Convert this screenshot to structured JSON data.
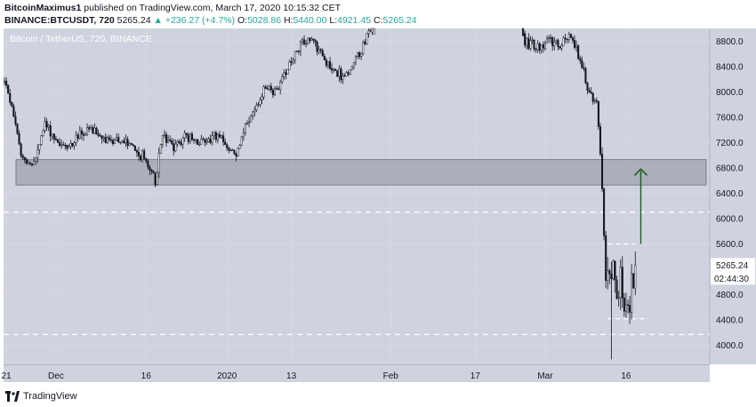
{
  "header": {
    "author": "BitcoinMaximus1",
    "published_text": "published on TradingView.com, March 17, 2020 10:15:32 CET",
    "symbol": "BINANCE:BTCUSDT, 720",
    "last": "5265.24",
    "change": "+236.27 (+4.7%)",
    "ohlc": [
      {
        "label": "O:",
        "value": "5028.86"
      },
      {
        "label": "H:",
        "value": "5440.00"
      },
      {
        "label": "L:",
        "value": "4921.45"
      },
      {
        "label": "C:",
        "value": "5265.24"
      }
    ]
  },
  "footer": {
    "brand": "TradingView"
  },
  "colors": {
    "plot_bg": "#cfd3df",
    "candle": "#131722",
    "zone_fill": "#8e919b",
    "dashed": "#ffffff",
    "arrow": "#1b5e20",
    "price_label_bg": "#ffffff"
  },
  "chart_data": {
    "type": "candlestick",
    "title": "Bitcoin / TetherUS, 720, BINANCE",
    "ylim": [
      3700,
      9000
    ],
    "y_ticks": [
      4000,
      4400,
      4800,
      5200,
      5600,
      6000,
      6400,
      6800,
      7200,
      7600,
      8000,
      8400,
      8800
    ],
    "x_ticks": [
      "21",
      "Dec",
      "16",
      "2020",
      "13",
      "Feb",
      "17",
      "Mar",
      "16"
    ],
    "x_tick_index": [
      1,
      28,
      77,
      121,
      156,
      210,
      256,
      294,
      338
    ],
    "n_bars": 384,
    "last_price_label": "5265.24",
    "countdown_label": "02:44:30",
    "support_zone": [
      6530,
      6930
    ],
    "dashed_levels": [
      6100,
      4170
    ],
    "short_dashed_levels": [
      {
        "value": 5600,
        "from_index": 328,
        "to_index": 343
      },
      {
        "value": 4420,
        "from_index": 328,
        "to_index": 350
      }
    ],
    "target_arrow": {
      "index": 346,
      "from": 5600,
      "to": 6780
    },
    "path_anchors": [
      [
        0,
        8150
      ],
      [
        4,
        7800
      ],
      [
        8,
        7100
      ],
      [
        14,
        6800
      ],
      [
        18,
        7050
      ],
      [
        22,
        7500
      ],
      [
        28,
        7250
      ],
      [
        34,
        7100
      ],
      [
        40,
        7300
      ],
      [
        46,
        7400
      ],
      [
        52,
        7300
      ],
      [
        58,
        7200
      ],
      [
        64,
        7250
      ],
      [
        70,
        7100
      ],
      [
        76,
        6950
      ],
      [
        82,
        6600
      ],
      [
        86,
        7300
      ],
      [
        92,
        7100
      ],
      [
        98,
        7300
      ],
      [
        104,
        7200
      ],
      [
        110,
        7250
      ],
      [
        116,
        7300
      ],
      [
        122,
        7100
      ],
      [
        126,
        7000
      ],
      [
        130,
        7400
      ],
      [
        136,
        7700
      ],
      [
        142,
        8100
      ],
      [
        148,
        8000
      ],
      [
        154,
        8400
      ],
      [
        160,
        8700
      ],
      [
        166,
        8850
      ],
      [
        172,
        8600
      ],
      [
        178,
        8400
      ],
      [
        184,
        8200
      ],
      [
        190,
        8450
      ],
      [
        196,
        8800
      ],
      [
        202,
        9200
      ],
      [
        220,
        10000
      ],
      [
        270,
        10200
      ],
      [
        283,
        8800
      ],
      [
        290,
        8700
      ],
      [
        296,
        8800
      ],
      [
        302,
        8750
      ],
      [
        308,
        8900
      ],
      [
        314,
        8400
      ],
      [
        318,
        7950
      ],
      [
        322,
        7800
      ],
      [
        325,
        6600
      ],
      [
        327,
        5000
      ],
      [
        329,
        4900
      ],
      [
        331,
        5300
      ],
      [
        333,
        4700
      ],
      [
        335,
        5100
      ],
      [
        337,
        4700
      ],
      [
        339,
        4500
      ],
      [
        341,
        5000
      ],
      [
        343,
        5265
      ]
    ]
  }
}
